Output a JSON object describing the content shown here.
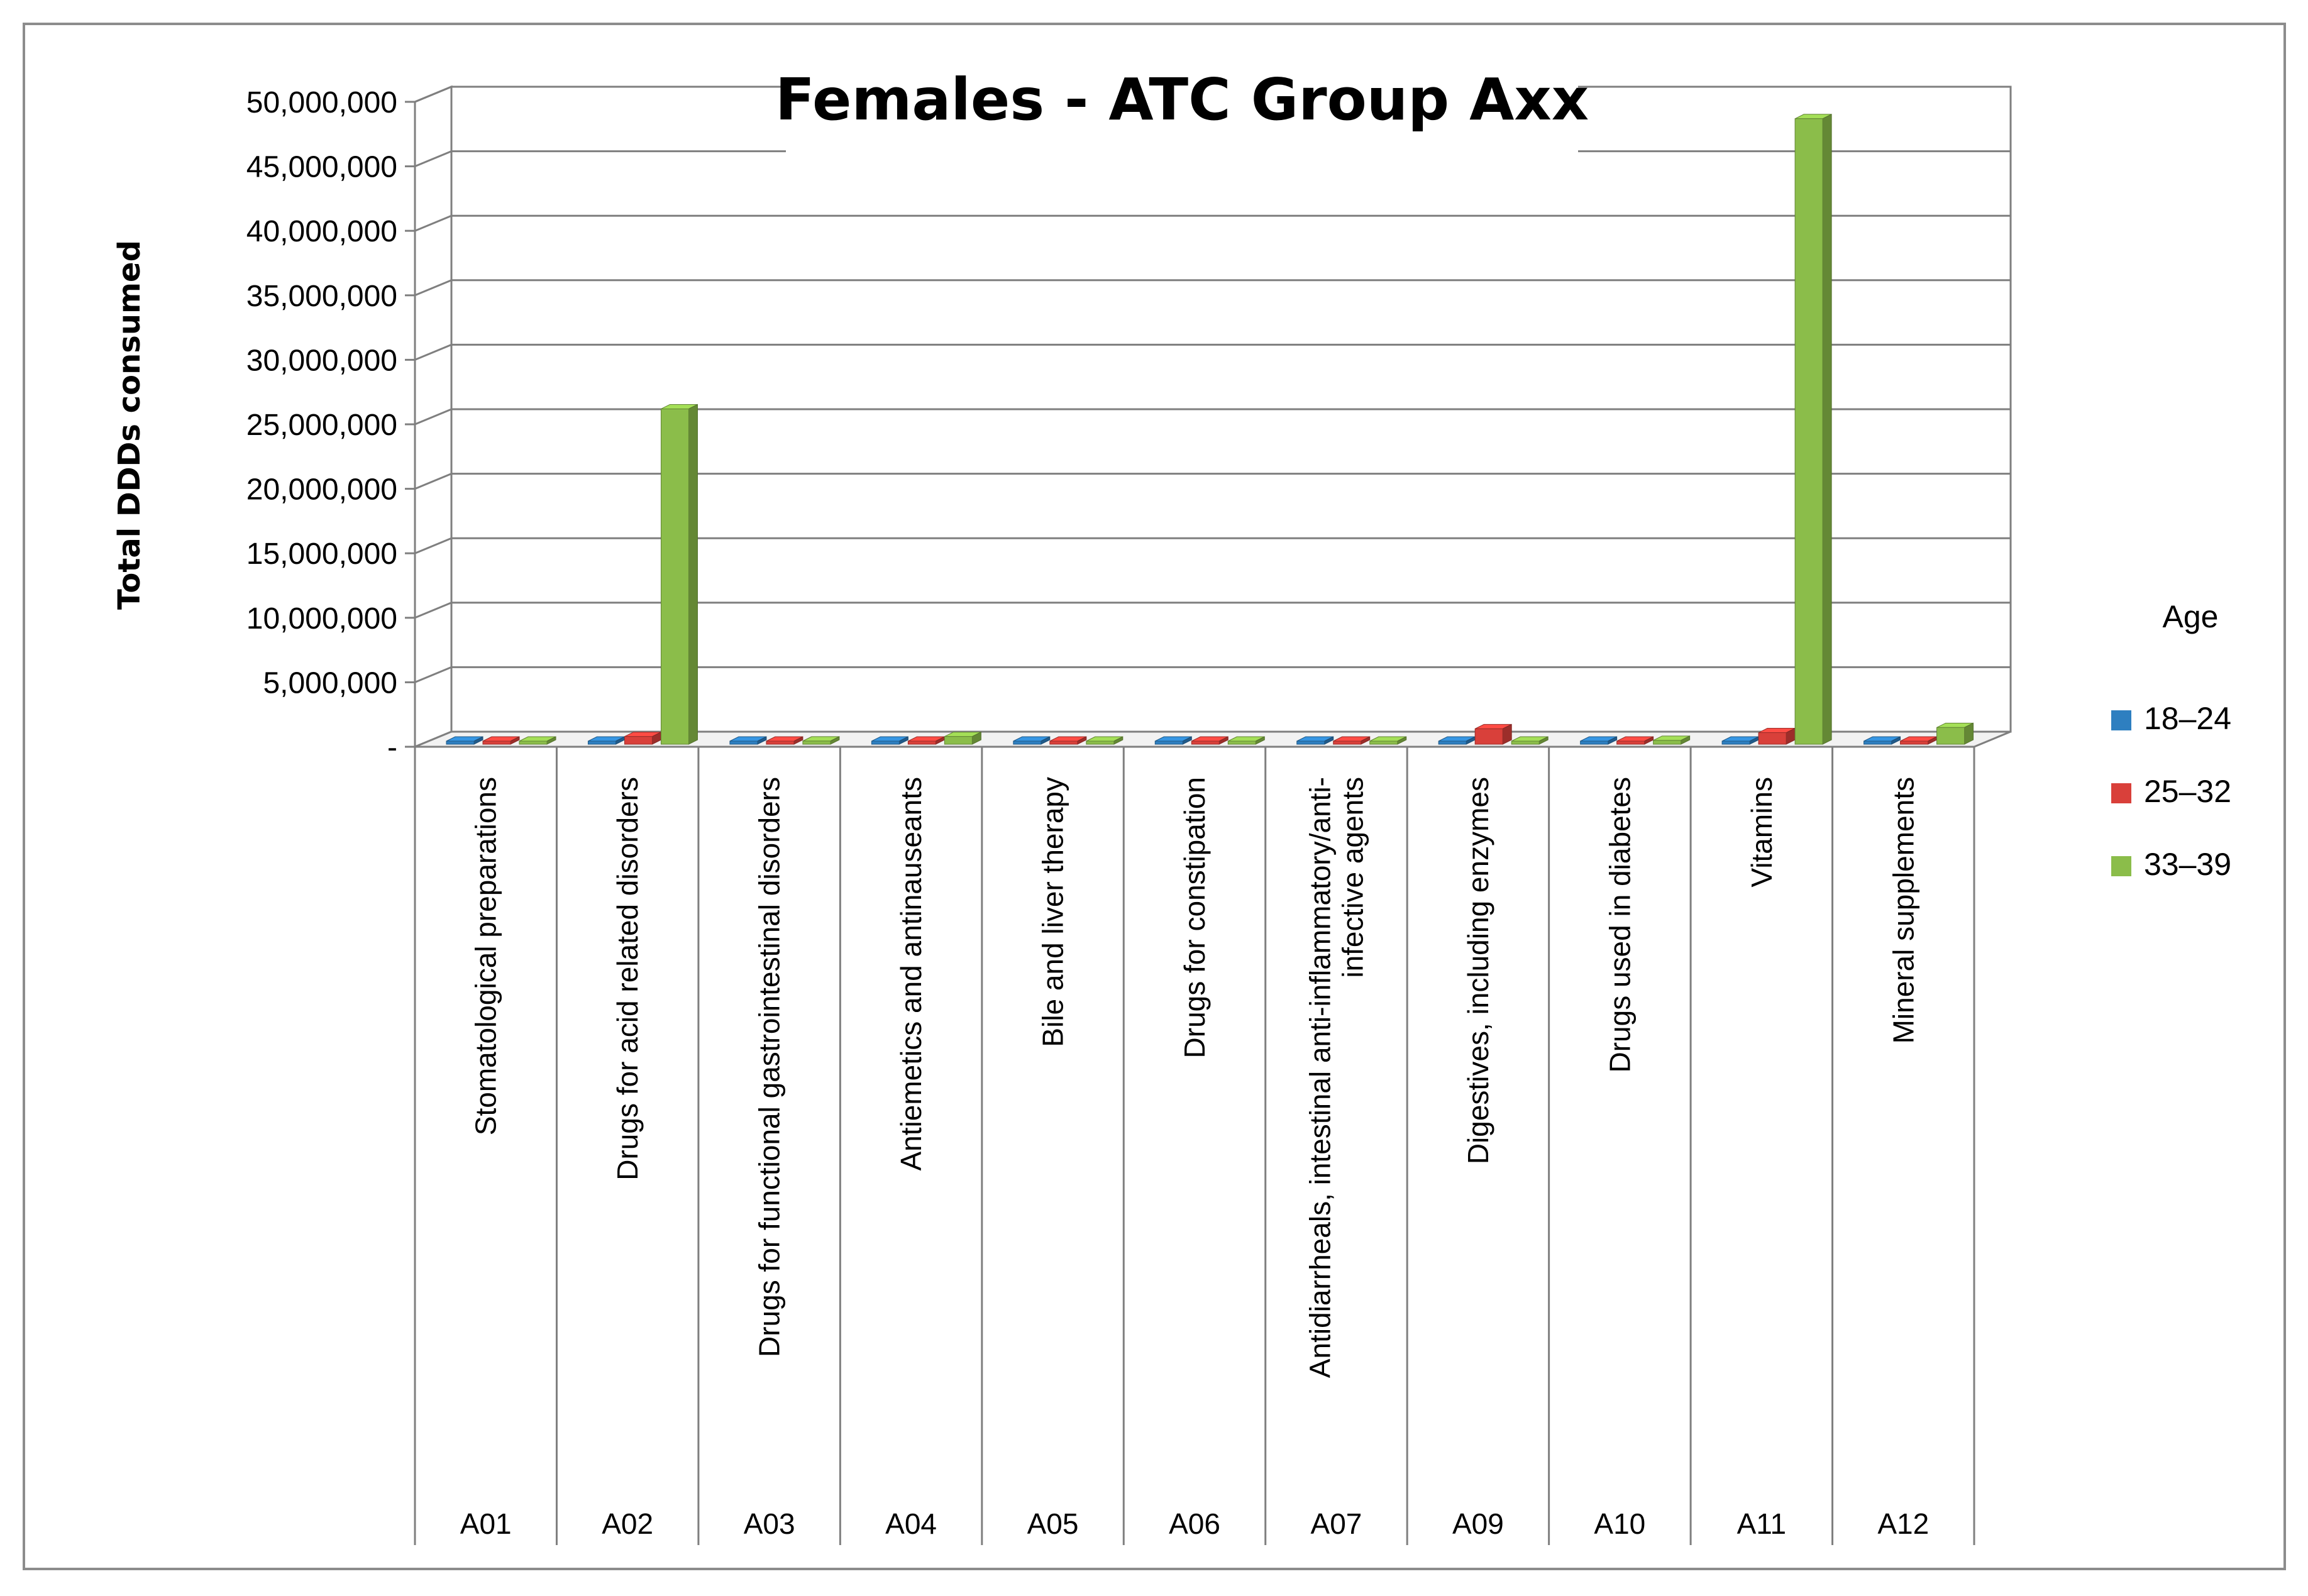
{
  "chart_data": {
    "type": "bar",
    "title": "Females - ATC Group Axx",
    "ylabel": "Total DDDs consumed",
    "xlabel": "",
    "ylim": [
      0,
      50000000
    ],
    "ytick_values": [
      0,
      5000000,
      10000000,
      15000000,
      20000000,
      25000000,
      30000000,
      35000000,
      40000000,
      45000000,
      50000000
    ],
    "ytick_labels": [
      "-",
      "5,000,000",
      "10,000,000",
      "15,000,000",
      "20,000,000",
      "25,000,000",
      "30,000,000",
      "35,000,000",
      "40,000,000",
      "45,000,000",
      "50,000,000"
    ],
    "grid": true,
    "legend_position": "right",
    "legend_title": "Age",
    "categories": [
      "A01",
      "A02",
      "A03",
      "A04",
      "A05",
      "A06",
      "A07",
      "A09",
      "A10",
      "A11",
      "A12"
    ],
    "category_descriptions": [
      [
        "Stomatological preparations"
      ],
      [
        "Drugs for acid related disorders"
      ],
      [
        "Drugs for functional gastrointestinal disorders"
      ],
      [
        "Antiemetics and antinauseants"
      ],
      [
        "Bile and liver therapy"
      ],
      [
        "Drugs for constipation"
      ],
      [
        "Antidiarrheals, intestinal anti-inflammatory/anti-",
        "infective agents"
      ],
      [
        "Digestives, including enzymes"
      ],
      [
        "Drugs used in diabetes"
      ],
      [
        "Vitamins"
      ],
      [
        "Mineral supplements"
      ]
    ],
    "series": [
      {
        "name": "18–24",
        "color": "#2E7FC0",
        "values": [
          0,
          0,
          0,
          0,
          0,
          0,
          0,
          0,
          0,
          0,
          0
        ]
      },
      {
        "name": "25–32",
        "color": "#D9403A",
        "values": [
          0,
          600000,
          0,
          0,
          0,
          0,
          0,
          1200000,
          0,
          900000,
          0
        ]
      },
      {
        "name": "33–39",
        "color": "#8BBD4A",
        "values": [
          0,
          26000000,
          250000,
          600000,
          150000,
          0,
          100000,
          150000,
          300000,
          48500000,
          1300000
        ]
      }
    ]
  }
}
